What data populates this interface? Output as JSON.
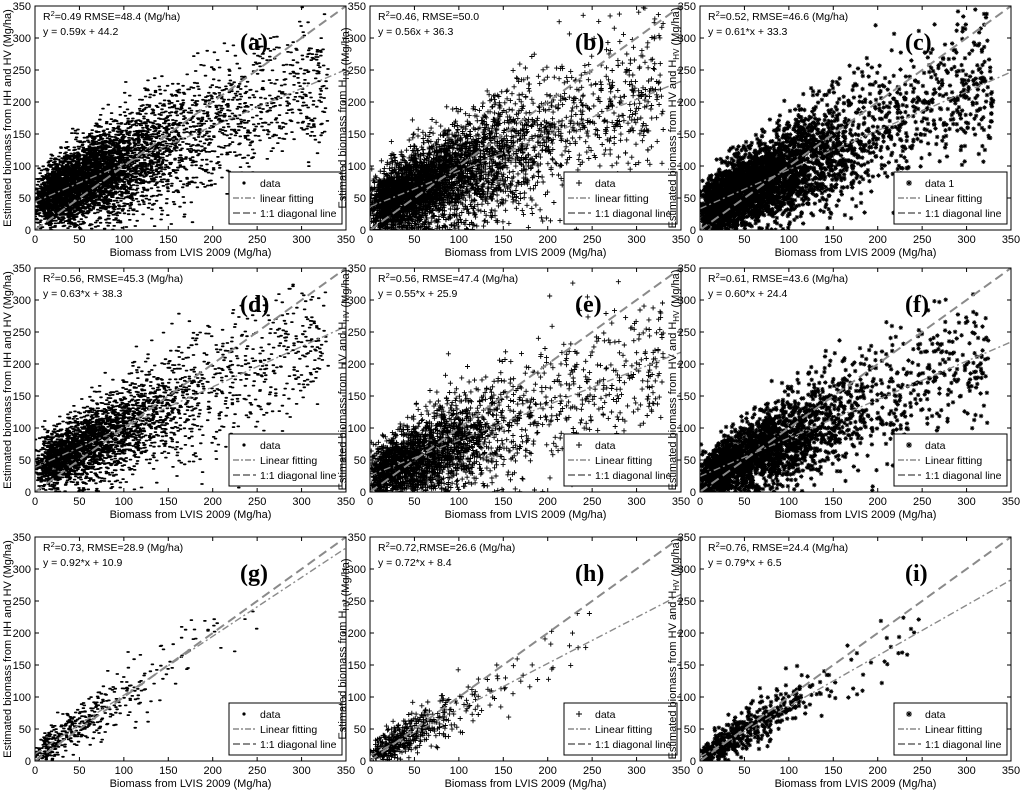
{
  "colors": {
    "points": "#000000",
    "lines": "#8a8a8a",
    "frame": "#000000"
  },
  "chart_data": [
    {
      "id": "a",
      "type": "scatter",
      "panel_label": "(a)",
      "marker": "dot",
      "n_points": 5200,
      "xlabel": "Biomass from LVIS 2009 (Mg/ha)",
      "ylabel": "Estimated biomass from HH and HV (Mg/ha)",
      "ylabel_sub": "",
      "xlim": [
        0,
        350
      ],
      "ylim": [
        0,
        350
      ],
      "xticks": [
        0,
        50,
        100,
        150,
        200,
        250,
        300,
        350
      ],
      "yticks": [
        0,
        50,
        100,
        150,
        200,
        250,
        300,
        350
      ],
      "annotation_r2": "R",
      "annotation_r2_sup": "2",
      "annotation_stats": "=0.49  RMSE=48.4 (Mg/ha)",
      "equation": "y = 0.59x + 44.2",
      "fit": {
        "slope": 0.59,
        "intercept": 44.2
      },
      "r2": 0.49,
      "rmse": 48.4,
      "legend": [
        "data",
        "linear fitting",
        "1:1 diagonal line"
      ]
    },
    {
      "id": "b",
      "type": "scatter",
      "panel_label": "(b)",
      "marker": "plus",
      "n_points": 4200,
      "xlabel": "Biomass from LVIS 2009 (Mg/ha)",
      "ylabel": "Estimated biomass from H",
      "ylabel_sub": "HV",
      "xlim": [
        0,
        350
      ],
      "ylim": [
        0,
        350
      ],
      "xticks": [
        0,
        50,
        100,
        150,
        200,
        250,
        300,
        350
      ],
      "yticks": [
        0,
        50,
        100,
        150,
        200,
        250,
        300,
        350
      ],
      "annotation_r2": "R",
      "annotation_r2_sup": "2",
      "annotation_stats": "=0.46,  RMSE=50.0",
      "equation": "y = 0.56x + 36.3",
      "fit": {
        "slope": 0.56,
        "intercept": 36.3
      },
      "r2": 0.46,
      "rmse": 50.0,
      "legend": [
        "data",
        "linear fitting",
        "1:1 diagonal line"
      ]
    },
    {
      "id": "c",
      "type": "scatter",
      "panel_label": "(c)",
      "marker": "star",
      "n_points": 4000,
      "xlabel": "Biomass from LVIS 2009 (Mg/ha)",
      "ylabel": "Estimated biomass from HV and H",
      "ylabel_sub": "HV",
      "xlim": [
        0,
        350
      ],
      "ylim": [
        0,
        350
      ],
      "xticks": [
        0,
        50,
        100,
        150,
        200,
        250,
        300,
        350
      ],
      "yticks": [
        0,
        50,
        100,
        150,
        200,
        250,
        300,
        350
      ],
      "annotation_r2": "R",
      "annotation_r2_sup": "2",
      "annotation_stats": "=0.52,  RMSE=46.6 (Mg/ha)",
      "equation": "y = 0.61*x + 33.3",
      "fit": {
        "slope": 0.61,
        "intercept": 33.3
      },
      "r2": 0.52,
      "rmse": 46.6,
      "legend": [
        "data 1",
        "Linear fitting",
        "1:1 diagonal line"
      ]
    },
    {
      "id": "d",
      "type": "scatter",
      "panel_label": "(d)",
      "marker": "dot",
      "n_points": 3200,
      "xlabel": "Biomass from LVIS 2009 (Mg/ha)",
      "ylabel": "Estimated biomass from HH and HV (Mg/ha)",
      "ylabel_sub": "",
      "xlim": [
        0,
        350
      ],
      "ylim": [
        0,
        350
      ],
      "xticks": [
        0,
        50,
        100,
        150,
        200,
        250,
        300,
        350
      ],
      "yticks": [
        0,
        50,
        100,
        150,
        200,
        250,
        300,
        350
      ],
      "annotation_r2": "R",
      "annotation_r2_sup": "2",
      "annotation_stats": "=0.56,  RMSE=45.3 (Mg/ha)",
      "equation": "y = 0.63*x + 38.3",
      "fit": {
        "slope": 0.63,
        "intercept": 38.3
      },
      "r2": 0.56,
      "rmse": 45.3,
      "legend": [
        "data",
        "Linear fitting",
        "1:1 diagonal line"
      ]
    },
    {
      "id": "e",
      "type": "scatter",
      "panel_label": "(e)",
      "marker": "plus",
      "n_points": 2600,
      "xlabel": "Biomass from LVIS 2009 (Mg/ha)",
      "ylabel": "Estimated biomass from HV and H",
      "ylabel_sub": "HV",
      "xlim": [
        0,
        350
      ],
      "ylim": [
        0,
        350
      ],
      "xticks": [
        0,
        50,
        100,
        150,
        200,
        250,
        300,
        350
      ],
      "yticks": [
        0,
        50,
        100,
        150,
        200,
        250,
        300,
        350
      ],
      "annotation_r2": "R",
      "annotation_r2_sup": "2",
      "annotation_stats": "=0.56,  RMSE=47.4 (Mg/ha)",
      "equation": "y = 0.55*x + 25.9",
      "fit": {
        "slope": 0.55,
        "intercept": 25.9
      },
      "r2": 0.56,
      "rmse": 47.4,
      "legend": [
        "data",
        "Linear fitting",
        "1:1 diagonal line"
      ]
    },
    {
      "id": "f",
      "type": "scatter",
      "panel_label": "(f)",
      "marker": "star",
      "n_points": 2600,
      "xlabel": "Biomass from LVIS 2009 (Mg/ha)",
      "ylabel": "Estimated biomass from HV and H",
      "ylabel_sub": "HV",
      "xlim": [
        0,
        350
      ],
      "ylim": [
        0,
        350
      ],
      "xticks": [
        0,
        50,
        100,
        150,
        200,
        250,
        300,
        350
      ],
      "yticks": [
        0,
        50,
        100,
        150,
        200,
        250,
        300,
        350
      ],
      "annotation_r2": "R",
      "annotation_r2_sup": "2",
      "annotation_stats": "=0.61,  RMSE=43.6 (Mg/ha)",
      "equation": "y = 0.60*x + 24.4",
      "fit": {
        "slope": 0.6,
        "intercept": 24.4
      },
      "r2": 0.61,
      "rmse": 43.6,
      "legend": [
        "data",
        "Linear fitting",
        "1:1 diagonal line"
      ]
    },
    {
      "id": "g",
      "type": "scatter",
      "panel_label": "(g)",
      "marker": "dot",
      "n_points": 420,
      "xlabel": "Biomass from LVIS 2009 (Mg/ha)",
      "ylabel": "Estimated biomass from HH and HV",
      "ylabel_sub": "",
      "xlim": [
        0,
        350
      ],
      "ylim": [
        0,
        350
      ],
      "xticks": [
        0,
        50,
        100,
        150,
        200,
        250,
        300,
        350
      ],
      "yticks": [
        0,
        50,
        100,
        150,
        200,
        250,
        300,
        350
      ],
      "annotation_r2": "R",
      "annotation_r2_sup": "2",
      "annotation_stats": "=0.73,  RMSE=28.9 (Mg/ha)",
      "equation": "y = 0.92*x + 10.9",
      "fit": {
        "slope": 0.92,
        "intercept": 10.9
      },
      "r2": 0.73,
      "rmse": 28.9,
      "legend": [
        "data",
        "Linear fitting",
        "1:1 diagonal line"
      ]
    },
    {
      "id": "h",
      "type": "scatter",
      "panel_label": "(h)",
      "marker": "plus",
      "n_points": 460,
      "xlabel": "Biomass from LVIS 2009 (Mg/ha)",
      "ylabel": "Estimated biomass from H",
      "ylabel_sub": "HV",
      "xlim": [
        0,
        350
      ],
      "ylim": [
        0,
        350
      ],
      "xticks": [
        0,
        50,
        100,
        150,
        200,
        250,
        300,
        350
      ],
      "yticks": [
        0,
        50,
        100,
        150,
        200,
        250,
        300,
        350
      ],
      "annotation_r2": "R",
      "annotation_r2_sup": "2",
      "annotation_stats": "=0.72,RMSE=26.6 (Mg/ha)",
      "equation": "y = 0.72*x + 8.4",
      "fit": {
        "slope": 0.72,
        "intercept": 8.4
      },
      "r2": 0.72,
      "rmse": 26.6,
      "legend": [
        "data",
        "Linear fitting",
        "1:1 diagonal line"
      ]
    },
    {
      "id": "i",
      "type": "scatter",
      "panel_label": "(i)",
      "marker": "star",
      "n_points": 480,
      "xlabel": "Biomass from LVIS 2009 (Mg/ha)",
      "ylabel": "Estimated biomass from HV and H",
      "ylabel_sub": "HV",
      "xlim": [
        0,
        350
      ],
      "ylim": [
        0,
        350
      ],
      "xticks": [
        0,
        50,
        100,
        150,
        200,
        250,
        300,
        350
      ],
      "yticks": [
        0,
        50,
        100,
        150,
        200,
        250,
        300,
        350
      ],
      "annotation_r2": "R",
      "annotation_r2_sup": "2",
      "annotation_stats": "=0.76,  RMSE=24.4 (Mg/ha)",
      "equation": "y = 0.79*x + 6.5",
      "fit": {
        "slope": 0.79,
        "intercept": 6.5
      },
      "r2": 0.76,
      "rmse": 24.4,
      "legend": [
        "data",
        "Linear fitting",
        "1:1 diagonal line"
      ]
    }
  ]
}
